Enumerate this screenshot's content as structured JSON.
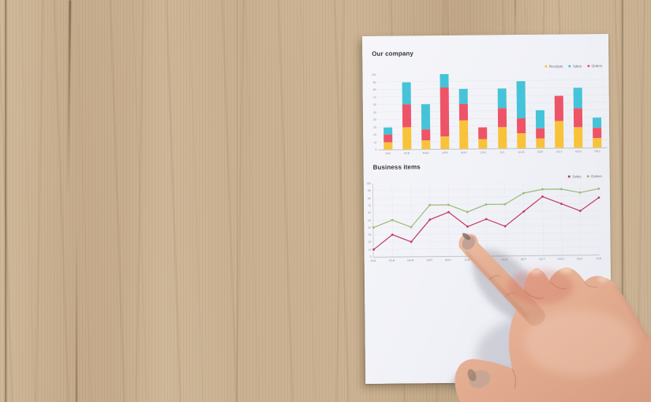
{
  "colors": {
    "wood_base": "#cbb293",
    "wood_seam": "#584230",
    "paper": "#f2f3f7",
    "skin": "#e3ad92",
    "skin_highlight": "#f2cab1",
    "skin_shadow": "#c98e74",
    "knuckle_flush": "#cf7f6d",
    "bar_receipts_yellow": "#f8c33a",
    "bar_sales_teal": "#45c3d8",
    "bar_orders_red": "#ee5468",
    "line_sales_red": "#c13a60",
    "line_orders_green": "#9cba72",
    "chart_title_text": "#36363b",
    "axis_text": "#95959e"
  },
  "chart_data": [
    {
      "type": "bar",
      "stacked": true,
      "title": "Our company",
      "categories": [
        "JAN",
        "FEB",
        "MAR",
        "APR",
        "MAY",
        "JUN",
        "JUL",
        "AUG",
        "SEP",
        "OCT",
        "NOV",
        "DEC"
      ],
      "series": [
        {
          "name": "Receipts",
          "color": "#f8c33a",
          "values": [
            10,
            30,
            12,
            17,
            38,
            13,
            28,
            20,
            13,
            36,
            27,
            13
          ]
        },
        {
          "name": "Orders",
          "color": "#ee5468",
          "values": [
            10,
            30,
            14,
            65,
            22,
            15,
            26,
            20,
            13,
            34,
            26,
            13
          ]
        },
        {
          "name": "Sales",
          "color": "#45c3d8",
          "values": [
            10,
            30,
            34,
            18,
            20,
            0,
            26,
            50,
            25,
            0,
            27,
            14
          ]
        }
      ],
      "stack_order_bottom_to_top": [
        "Receipts",
        "Orders",
        "Sales"
      ],
      "legend_order": [
        "Receipts",
        "Sales",
        "Orders"
      ],
      "xlabel": "",
      "ylabel": "",
      "ylim": [
        0,
        100
      ],
      "ytick_step": 10,
      "grid": "horizontal",
      "legend_position": "top-right"
    },
    {
      "type": "line",
      "title": "Business items",
      "x_labels": [
        "JAN",
        "FEB",
        "MAR",
        "APR",
        "MAY",
        "JUN",
        "JUL",
        "AUG",
        "SEP",
        "OCT",
        "NOV",
        "DEC",
        "JAN"
      ],
      "series": [
        {
          "name": "Sales",
          "color": "#c13a60",
          "values": [
            10,
            30,
            20,
            50,
            60,
            40,
            50,
            40,
            60,
            80,
            70,
            60,
            78
          ]
        },
        {
          "name": "Orders",
          "color": "#9cba72",
          "values": [
            40,
            50,
            40,
            70,
            70,
            60,
            70,
            70,
            85,
            90,
            90,
            85,
            90
          ]
        }
      ],
      "legend_order": [
        "Sales",
        "Orders"
      ],
      "xlabel": "",
      "ylabel": "",
      "ylim": [
        0,
        100
      ],
      "ytick_step": 10,
      "grid": "both",
      "legend_position": "top-right"
    }
  ]
}
